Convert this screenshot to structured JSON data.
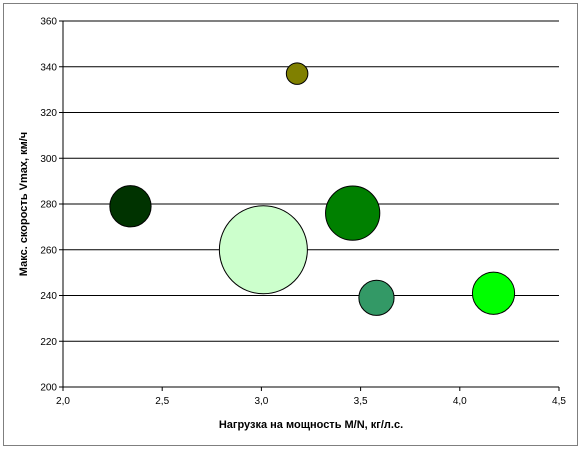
{
  "chart_data": {
    "type": "bubble",
    "title": "",
    "xlabel": "Нагрузка на мощность M/N, кг/л.с.",
    "ylabel": "Макс. скорость Vmax, км/ч",
    "xlim": [
      2.0,
      4.5
    ],
    "ylim": [
      200,
      360
    ],
    "x_ticks": [
      "2,0",
      "2,5",
      "3,0",
      "3,5",
      "4,0",
      "4,5"
    ],
    "y_ticks": [
      "200",
      "220",
      "240",
      "260",
      "280",
      "300",
      "320",
      "340",
      "360"
    ],
    "grid": "horizontal",
    "legend": "none",
    "points": [
      {
        "x": 2.34,
        "y": 279,
        "size": 2.2,
        "color": "#003300"
      },
      {
        "x": 3.01,
        "y": 260,
        "size": 10.0,
        "color": "#ccffcc"
      },
      {
        "x": 3.18,
        "y": 337,
        "size": 0.6,
        "color": "#808000"
      },
      {
        "x": 3.46,
        "y": 276,
        "size": 3.8,
        "color": "#008000"
      },
      {
        "x": 3.58,
        "y": 239,
        "size": 1.6,
        "color": "#339966"
      },
      {
        "x": 4.17,
        "y": 241,
        "size": 2.3,
        "color": "#00ff00"
      }
    ]
  }
}
